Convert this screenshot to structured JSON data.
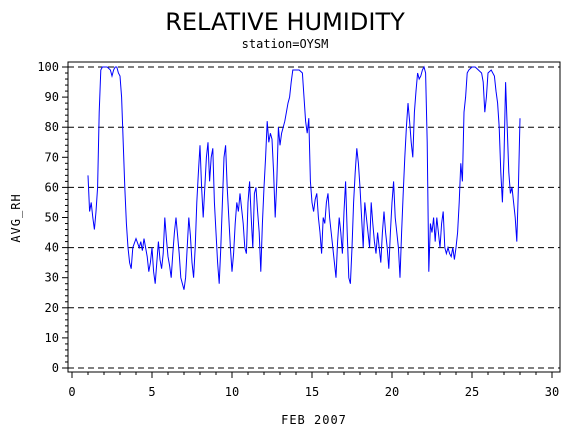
{
  "chart_data": {
    "type": "line",
    "title": "RELATIVE HUMIDITY",
    "subtitle": "station=OYSM",
    "xlabel": "FEB 2007",
    "ylabel": "AVG_RH",
    "xlim": [
      0,
      30
    ],
    "ylim": [
      0,
      100
    ],
    "x_ticks": [
      0,
      5,
      10,
      15,
      20,
      25,
      30
    ],
    "y_ticks": [
      0,
      10,
      20,
      30,
      40,
      50,
      60,
      70,
      80,
      90,
      100
    ],
    "grid": "horizontal dashed at 0, 20, 40, 60, 80, 100",
    "series": [
      {
        "color": "#0000ff",
        "points": [
          [
            1.0,
            64
          ],
          [
            1.1,
            52
          ],
          [
            1.2,
            55
          ],
          [
            1.3,
            50
          ],
          [
            1.4,
            46
          ],
          [
            1.5,
            52
          ],
          [
            1.6,
            60
          ],
          [
            1.7,
            85
          ],
          [
            1.8,
            99
          ],
          [
            1.9,
            100
          ],
          [
            2.0,
            100
          ],
          [
            2.2,
            100
          ],
          [
            2.4,
            99
          ],
          [
            2.5,
            97
          ],
          [
            2.6,
            99
          ],
          [
            2.7,
            100
          ],
          [
            2.8,
            100
          ],
          [
            2.9,
            98
          ],
          [
            3.0,
            97
          ],
          [
            3.1,
            90
          ],
          [
            3.2,
            75
          ],
          [
            3.3,
            60
          ],
          [
            3.4,
            48
          ],
          [
            3.5,
            40
          ],
          [
            3.6,
            35
          ],
          [
            3.7,
            33
          ],
          [
            3.8,
            40
          ],
          [
            4.0,
            43
          ],
          [
            4.2,
            40
          ],
          [
            4.3,
            42
          ],
          [
            4.4,
            39
          ],
          [
            4.5,
            43
          ],
          [
            4.6,
            40
          ],
          [
            4.7,
            37
          ],
          [
            4.8,
            32
          ],
          [
            4.9,
            35
          ],
          [
            5.0,
            40
          ],
          [
            5.1,
            32
          ],
          [
            5.2,
            28
          ],
          [
            5.3,
            35
          ],
          [
            5.4,
            42
          ],
          [
            5.5,
            36
          ],
          [
            5.6,
            33
          ],
          [
            5.7,
            38
          ],
          [
            5.8,
            50
          ],
          [
            5.9,
            43
          ],
          [
            6.0,
            37
          ],
          [
            6.1,
            34
          ],
          [
            6.2,
            30
          ],
          [
            6.3,
            38
          ],
          [
            6.4,
            45
          ],
          [
            6.5,
            50
          ],
          [
            6.6,
            44
          ],
          [
            6.7,
            38
          ],
          [
            6.8,
            30
          ],
          [
            6.9,
            28
          ],
          [
            7.0,
            26
          ],
          [
            7.1,
            30
          ],
          [
            7.2,
            40
          ],
          [
            7.3,
            50
          ],
          [
            7.4,
            44
          ],
          [
            7.5,
            35
          ],
          [
            7.6,
            30
          ],
          [
            7.7,
            40
          ],
          [
            7.8,
            55
          ],
          [
            7.9,
            65
          ],
          [
            8.0,
            74
          ],
          [
            8.1,
            60
          ],
          [
            8.2,
            50
          ],
          [
            8.3,
            60
          ],
          [
            8.4,
            70
          ],
          [
            8.5,
            75
          ],
          [
            8.6,
            62
          ],
          [
            8.7,
            70
          ],
          [
            8.8,
            73
          ],
          [
            8.9,
            55
          ],
          [
            9.0,
            45
          ],
          [
            9.1,
            35
          ],
          [
            9.2,
            28
          ],
          [
            9.3,
            40
          ],
          [
            9.4,
            55
          ],
          [
            9.5,
            70
          ],
          [
            9.6,
            74
          ],
          [
            9.7,
            60
          ],
          [
            9.8,
            50
          ],
          [
            9.9,
            40
          ],
          [
            10.0,
            32
          ],
          [
            10.1,
            38
          ],
          [
            10.2,
            48
          ],
          [
            10.3,
            55
          ],
          [
            10.4,
            52
          ],
          [
            10.5,
            58
          ],
          [
            10.6,
            53
          ],
          [
            10.7,
            48
          ],
          [
            10.8,
            40
          ],
          [
            10.9,
            38
          ],
          [
            11.0,
            55
          ],
          [
            11.1,
            62
          ],
          [
            11.2,
            50
          ],
          [
            11.3,
            40
          ],
          [
            11.4,
            58
          ],
          [
            11.5,
            60
          ],
          [
            11.6,
            52
          ],
          [
            11.7,
            45
          ],
          [
            11.8,
            32
          ],
          [
            11.9,
            48
          ],
          [
            12.0,
            60
          ],
          [
            12.1,
            70
          ],
          [
            12.2,
            82
          ],
          [
            12.3,
            75
          ],
          [
            12.4,
            78
          ],
          [
            12.5,
            76
          ],
          [
            12.6,
            65
          ],
          [
            12.7,
            50
          ],
          [
            12.8,
            62
          ],
          [
            12.9,
            80
          ],
          [
            13.0,
            74
          ],
          [
            13.1,
            78
          ],
          [
            13.2,
            80
          ],
          [
            13.3,
            82
          ],
          [
            13.4,
            85
          ],
          [
            13.5,
            88
          ],
          [
            13.6,
            90
          ],
          [
            13.7,
            95
          ],
          [
            13.8,
            99
          ],
          [
            14.0,
            99
          ],
          [
            14.2,
            99
          ],
          [
            14.4,
            98
          ],
          [
            14.5,
            90
          ],
          [
            14.6,
            82
          ],
          [
            14.7,
            78
          ],
          [
            14.8,
            83
          ],
          [
            14.9,
            62
          ],
          [
            15.0,
            55
          ],
          [
            15.1,
            52
          ],
          [
            15.2,
            56
          ],
          [
            15.3,
            58
          ],
          [
            15.4,
            50
          ],
          [
            15.5,
            45
          ],
          [
            15.6,
            38
          ],
          [
            15.7,
            50
          ],
          [
            15.8,
            48
          ],
          [
            15.9,
            55
          ],
          [
            16.0,
            58
          ],
          [
            16.1,
            50
          ],
          [
            16.2,
            45
          ],
          [
            16.3,
            40
          ],
          [
            16.4,
            35
          ],
          [
            16.5,
            30
          ],
          [
            16.6,
            42
          ],
          [
            16.7,
            50
          ],
          [
            16.8,
            45
          ],
          [
            16.9,
            38
          ],
          [
            17.0,
            52
          ],
          [
            17.1,
            62
          ],
          [
            17.2,
            45
          ],
          [
            17.3,
            30
          ],
          [
            17.4,
            28
          ],
          [
            17.5,
            40
          ],
          [
            17.6,
            55
          ],
          [
            17.7,
            65
          ],
          [
            17.8,
            73
          ],
          [
            17.9,
            68
          ],
          [
            18.0,
            60
          ],
          [
            18.1,
            50
          ],
          [
            18.2,
            40
          ],
          [
            18.3,
            55
          ],
          [
            18.4,
            50
          ],
          [
            18.5,
            45
          ],
          [
            18.6,
            40
          ],
          [
            18.7,
            55
          ],
          [
            18.8,
            48
          ],
          [
            18.9,
            42
          ],
          [
            19.0,
            38
          ],
          [
            19.1,
            45
          ],
          [
            19.2,
            40
          ],
          [
            19.3,
            35
          ],
          [
            19.4,
            45
          ],
          [
            19.5,
            52
          ],
          [
            19.6,
            45
          ],
          [
            19.7,
            40
          ],
          [
            19.8,
            33
          ],
          [
            19.9,
            45
          ],
          [
            20.0,
            55
          ],
          [
            20.1,
            62
          ],
          [
            20.2,
            50
          ],
          [
            20.3,
            45
          ],
          [
            20.4,
            40
          ],
          [
            20.5,
            30
          ],
          [
            20.6,
            45
          ],
          [
            20.7,
            58
          ],
          [
            20.8,
            70
          ],
          [
            20.9,
            80
          ],
          [
            21.0,
            88
          ],
          [
            21.1,
            82
          ],
          [
            21.2,
            75
          ],
          [
            21.3,
            70
          ],
          [
            21.4,
            85
          ],
          [
            21.5,
            92
          ],
          [
            21.6,
            98
          ],
          [
            21.7,
            96
          ],
          [
            21.8,
            97
          ],
          [
            21.9,
            99
          ],
          [
            22.0,
            100
          ],
          [
            22.1,
            98
          ],
          [
            22.2,
            75
          ],
          [
            22.3,
            32
          ],
          [
            22.4,
            48
          ],
          [
            22.5,
            45
          ],
          [
            22.6,
            50
          ],
          [
            22.7,
            42
          ],
          [
            22.8,
            50
          ],
          [
            22.9,
            45
          ],
          [
            23.0,
            40
          ],
          [
            23.1,
            48
          ],
          [
            23.2,
            52
          ],
          [
            23.3,
            40
          ],
          [
            23.4,
            38
          ],
          [
            23.5,
            40
          ],
          [
            23.6,
            38
          ],
          [
            23.7,
            37
          ],
          [
            23.8,
            40
          ],
          [
            23.9,
            36
          ],
          [
            24.0,
            40
          ],
          [
            24.1,
            45
          ],
          [
            24.2,
            55
          ],
          [
            24.3,
            68
          ],
          [
            24.4,
            62
          ],
          [
            24.5,
            85
          ],
          [
            24.6,
            90
          ],
          [
            24.7,
            98
          ],
          [
            24.8,
            99
          ],
          [
            25.0,
            100
          ],
          [
            25.2,
            100
          ],
          [
            25.4,
            99
          ],
          [
            25.6,
            98
          ],
          [
            25.7,
            95
          ],
          [
            25.8,
            85
          ],
          [
            25.9,
            90
          ],
          [
            26.0,
            98
          ],
          [
            26.2,
            99
          ],
          [
            26.4,
            97
          ],
          [
            26.5,
            92
          ],
          [
            26.6,
            88
          ],
          [
            26.7,
            80
          ],
          [
            26.8,
            65
          ],
          [
            26.9,
            55
          ],
          [
            27.0,
            70
          ],
          [
            27.1,
            95
          ],
          [
            27.2,
            80
          ],
          [
            27.3,
            65
          ],
          [
            27.4,
            58
          ],
          [
            27.5,
            60
          ],
          [
            27.6,
            55
          ],
          [
            27.7,
            50
          ],
          [
            27.8,
            42
          ],
          [
            27.9,
            60
          ],
          [
            28.0,
            83
          ]
        ]
      }
    ]
  }
}
